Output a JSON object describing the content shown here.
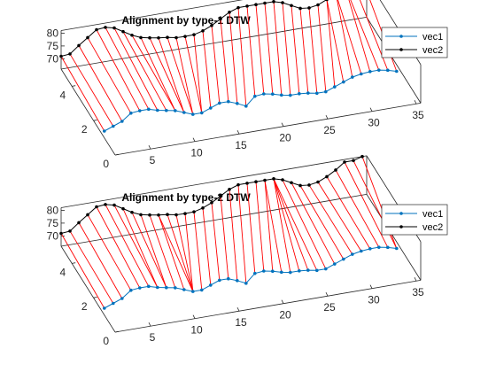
{
  "colors": {
    "vec1": "#0072BD",
    "vec2": "#000000",
    "alignment": "#ff0000",
    "axes": "#262626"
  },
  "chart_data": [
    {
      "type": "line3d",
      "title": "Alignment by type-1 DTW",
      "x_ticks": [
        "5",
        "10",
        "15",
        "20",
        "25",
        "30",
        "35"
      ],
      "y_ticks": [
        "0",
        "2",
        "4"
      ],
      "z_ticks": [
        "70",
        "75",
        "80"
      ],
      "xlim": [
        1,
        35
      ],
      "ylim": [
        0,
        5
      ],
      "zlim": [
        66,
        81
      ],
      "legend": [
        "vec1",
        "vec2"
      ],
      "legend_position": "outside-right",
      "series": [
        {
          "name": "vec1",
          "y_level": 1,
          "values": [
            0.8,
            1.2,
            1.6,
            2.4,
            2.5,
            2.5,
            2.2,
            2.0,
            1.8,
            1.4,
            1.0,
            1.0,
            1.4,
            1.8,
            1.8,
            1.4,
            0.9,
            1.9,
            2.0,
            1.8,
            1.5,
            1.3,
            1.3,
            1.2,
            1.0,
            1.0,
            1.4,
            1.8,
            2.2,
            2.4,
            2.5,
            2.5,
            2.3,
            2.0
          ]
        },
        {
          "name": "vec2",
          "y_level": 5,
          "values": [
            71,
            71.3,
            74,
            76.5,
            79,
            79.3,
            78.5,
            76.5,
            74.5,
            73,
            72.3,
            71.7,
            71.3,
            70.6,
            70.5,
            70.6,
            71.5,
            73,
            75,
            77,
            78.2,
            78.2,
            78.2,
            78.2,
            78.2,
            77.2,
            75.5,
            73.8,
            73.4,
            74,
            75.5,
            77.5,
            80,
            80,
            81
          ]
        }
      ],
      "alignment_pairs": [
        [
          1,
          1
        ],
        [
          2,
          2
        ],
        [
          3,
          3
        ],
        [
          4,
          4
        ],
        [
          5,
          5
        ],
        [
          6,
          6
        ],
        [
          7,
          7
        ],
        [
          8,
          8
        ],
        [
          9,
          9
        ],
        [
          9,
          10
        ],
        [
          10,
          11
        ],
        [
          10,
          12
        ],
        [
          11,
          13
        ],
        [
          11,
          14
        ],
        [
          12,
          15
        ],
        [
          12,
          16
        ],
        [
          13,
          17
        ],
        [
          14,
          18
        ],
        [
          15,
          19
        ],
        [
          16,
          20
        ],
        [
          17,
          21
        ],
        [
          18,
          22
        ],
        [
          19,
          23
        ],
        [
          20,
          24
        ],
        [
          21,
          25
        ],
        [
          22,
          26
        ],
        [
          23,
          27
        ],
        [
          24,
          28
        ],
        [
          25,
          29
        ],
        [
          26,
          30
        ],
        [
          27,
          31
        ],
        [
          28,
          31
        ],
        [
          29,
          32
        ],
        [
          30,
          32
        ],
        [
          31,
          33
        ],
        [
          32,
          33
        ],
        [
          33,
          34
        ],
        [
          34,
          35
        ]
      ]
    },
    {
      "type": "line3d",
      "title": "Alignment by type-2 DTW",
      "x_ticks": [
        "5",
        "10",
        "15",
        "20",
        "25",
        "30",
        "35"
      ],
      "y_ticks": [
        "0",
        "2",
        "4"
      ],
      "z_ticks": [
        "70",
        "75",
        "80"
      ],
      "xlim": [
        1,
        35
      ],
      "ylim": [
        0,
        5
      ],
      "zlim": [
        66,
        81
      ],
      "legend": [
        "vec1",
        "vec2"
      ],
      "legend_position": "outside-right",
      "series": [
        {
          "name": "vec1",
          "y_level": 1,
          "values": [
            0.8,
            1.2,
            1.6,
            2.4,
            2.5,
            2.5,
            2.2,
            2.0,
            1.8,
            1.4,
            1.0,
            1.0,
            1.4,
            1.8,
            1.8,
            1.4,
            0.9,
            1.9,
            2.0,
            1.8,
            1.5,
            1.3,
            1.3,
            1.2,
            1.0,
            1.0,
            1.4,
            1.8,
            2.2,
            2.4,
            2.5,
            2.5,
            2.3,
            2.0
          ]
        },
        {
          "name": "vec2",
          "y_level": 5,
          "values": [
            71,
            71.3,
            74,
            76.5,
            79,
            79.3,
            78.5,
            76.5,
            74.5,
            73,
            72.3,
            71.7,
            71.3,
            70.6,
            70.5,
            70.6,
            71.5,
            73,
            75,
            77,
            78.2,
            78.2,
            78.2,
            78.2,
            78.2,
            77.2,
            75.5,
            73.8,
            73.4,
            74,
            75.5,
            77.5,
            80,
            80,
            81
          ]
        }
      ],
      "alignment_pairs": [
        [
          1,
          1
        ],
        [
          2,
          2
        ],
        [
          3,
          3
        ],
        [
          4,
          4
        ],
        [
          5,
          5
        ],
        [
          6,
          6
        ],
        [
          7,
          7
        ],
        [
          7,
          8
        ],
        [
          8,
          9
        ],
        [
          8,
          10
        ],
        [
          9,
          11
        ],
        [
          10,
          12
        ],
        [
          11,
          12
        ],
        [
          11,
          13
        ],
        [
          11,
          14
        ],
        [
          11,
          15
        ],
        [
          12,
          16
        ],
        [
          13,
          17
        ],
        [
          14,
          18
        ],
        [
          15,
          19
        ],
        [
          16,
          20
        ],
        [
          17,
          21
        ],
        [
          18,
          22
        ],
        [
          19,
          23
        ],
        [
          20,
          24
        ],
        [
          21,
          24
        ],
        [
          22,
          25
        ],
        [
          23,
          25
        ],
        [
          24,
          25
        ],
        [
          25,
          25
        ],
        [
          26,
          26
        ],
        [
          27,
          27
        ],
        [
          28,
          28
        ],
        [
          29,
          29
        ],
        [
          30,
          30
        ],
        [
          31,
          31
        ],
        [
          32,
          32
        ],
        [
          33,
          33
        ],
        [
          34,
          34
        ],
        [
          34,
          35
        ]
      ]
    }
  ]
}
